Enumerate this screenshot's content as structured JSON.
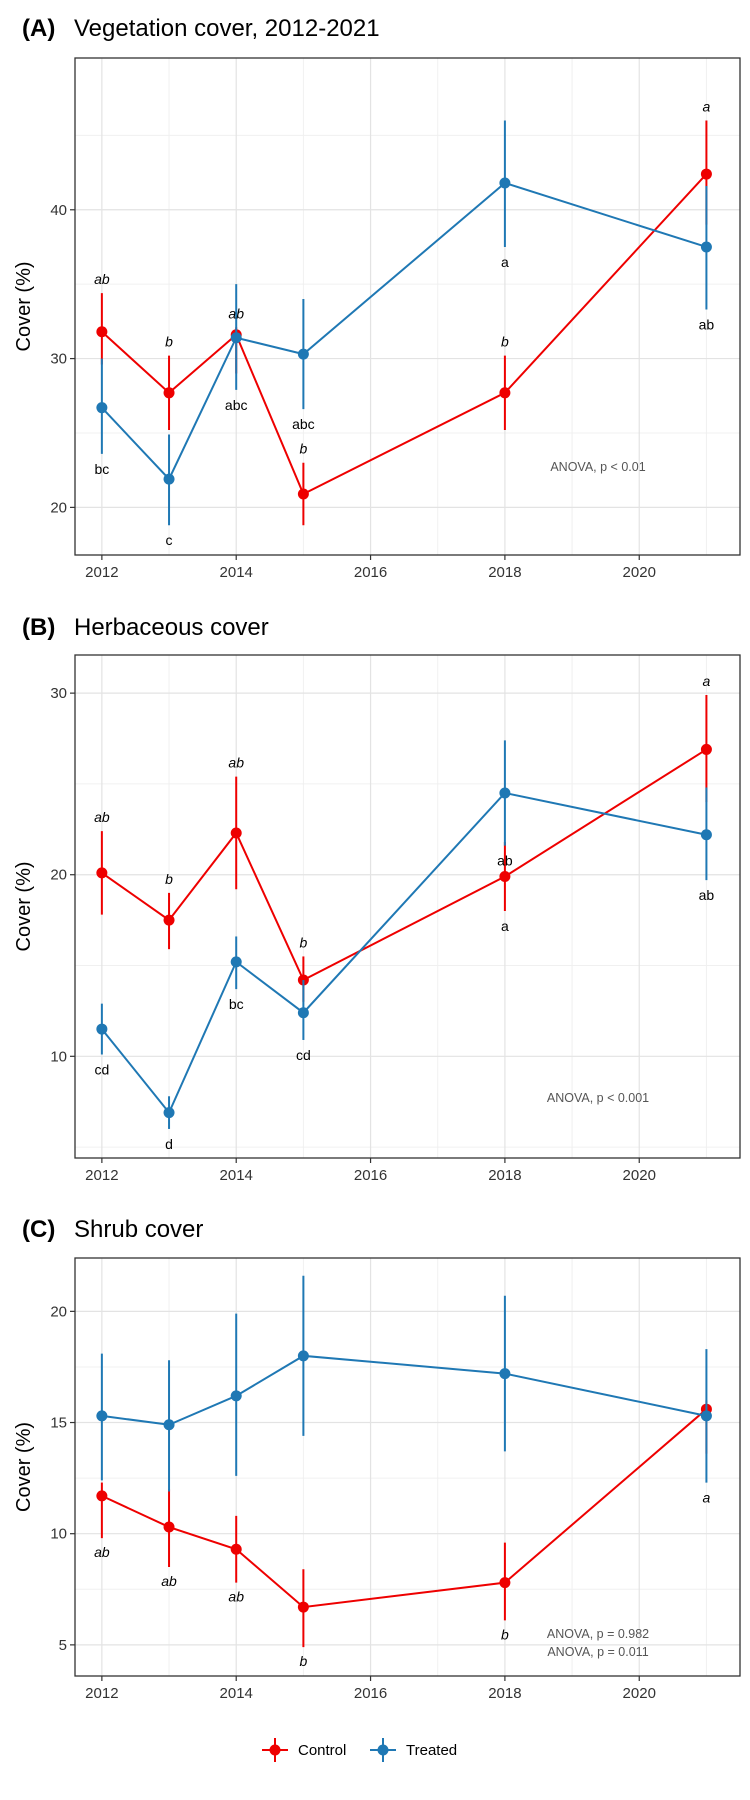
{
  "legend": [
    {
      "name": "Control",
      "color": "#EE0000"
    },
    {
      "name": "Treated",
      "color": "#1F78B4"
    }
  ],
  "chart_data": [
    {
      "type": "line",
      "tag": "(A)",
      "title": "Vegetation cover, 2012-2021",
      "ylabel": "Cover (%)",
      "xlim": [
        2011.6,
        2021.5
      ],
      "ylim": [
        16.8,
        50.2
      ],
      "x_ticks": [
        2012,
        2014,
        2016,
        2018,
        2020
      ],
      "y_ticks": [
        20,
        30,
        40
      ],
      "annotation": [
        "ANOVA, p < 0.01"
      ],
      "series": [
        {
          "name": "Control",
          "color": "#EE0000",
          "points": [
            {
              "x": 2012,
              "y": 31.8,
              "lo": 29.6,
              "hi": 34.4,
              "label": "ab"
            },
            {
              "x": 2013,
              "y": 27.7,
              "lo": 25.2,
              "hi": 30.2,
              "label": "b"
            },
            {
              "x": 2014,
              "y": 31.6,
              "lo": 29.0,
              "hi": 32.1,
              "label": "ab"
            },
            {
              "x": 2015,
              "y": 20.9,
              "lo": 18.8,
              "hi": 23.0,
              "label": "b"
            },
            {
              "x": 2018,
              "y": 27.7,
              "lo": 25.2,
              "hi": 30.2,
              "label": "b"
            },
            {
              "x": 2021,
              "y": 42.4,
              "lo": 39.0,
              "hi": 46.0,
              "label": "a"
            }
          ]
        },
        {
          "name": "Treated",
          "color": "#1F78B4",
          "points": [
            {
              "x": 2012,
              "y": 26.7,
              "lo": 23.6,
              "hi": 30.0,
              "label": "bc"
            },
            {
              "x": 2013,
              "y": 21.9,
              "lo": 18.8,
              "hi": 24.9,
              "label": "c"
            },
            {
              "x": 2014,
              "y": 31.4,
              "lo": 27.9,
              "hi": 35.0,
              "label": "abc"
            },
            {
              "x": 2015,
              "y": 30.3,
              "lo": 26.6,
              "hi": 34.0,
              "label": "abc"
            },
            {
              "x": 2018,
              "y": 41.8,
              "lo": 37.5,
              "hi": 46.0,
              "label": "a"
            },
            {
              "x": 2021,
              "y": 37.5,
              "lo": 33.3,
              "hi": 41.6,
              "label": "ab"
            }
          ]
        }
      ]
    },
    {
      "type": "line",
      "tag": "(B)",
      "title": "Herbaceous cover",
      "ylabel": "Cover (%)",
      "xlim": [
        2011.6,
        2021.5
      ],
      "ylim": [
        4.4,
        32.1
      ],
      "x_ticks": [
        2012,
        2014,
        2016,
        2018,
        2020
      ],
      "y_ticks": [
        10,
        20,
        30
      ],
      "annotation": [
        "ANOVA, p < 0.001"
      ],
      "series": [
        {
          "name": "Control",
          "color": "#EE0000",
          "points": [
            {
              "x": 2012,
              "y": 20.1,
              "lo": 17.8,
              "hi": 22.4,
              "label": "ab"
            },
            {
              "x": 2013,
              "y": 17.5,
              "lo": 15.9,
              "hi": 19.0,
              "label": "b"
            },
            {
              "x": 2014,
              "y": 22.3,
              "lo": 19.2,
              "hi": 25.4,
              "label": "ab"
            },
            {
              "x": 2015,
              "y": 14.2,
              "lo": 13.0,
              "hi": 15.5,
              "label": "b"
            },
            {
              "x": 2018,
              "y": 19.9,
              "lo": 18.0,
              "hi": 21.8,
              "label": ""
            },
            {
              "x": 2021,
              "y": 26.9,
              "lo": 24.0,
              "hi": 29.9,
              "label": "a"
            }
          ]
        },
        {
          "name": "Treated",
          "color": "#1F78B4",
          "points": [
            {
              "x": 2012,
              "y": 11.5,
              "lo": 10.1,
              "hi": 12.9,
              "label": "cd"
            },
            {
              "x": 2013,
              "y": 6.9,
              "lo": 6.0,
              "hi": 7.8,
              "label": "d"
            },
            {
              "x": 2014,
              "y": 15.2,
              "lo": 13.7,
              "hi": 16.6,
              "label": "bc"
            },
            {
              "x": 2015,
              "y": 12.4,
              "lo": 10.9,
              "hi": 14.2,
              "label": "cd"
            },
            {
              "x": 2018,
              "y": 24.5,
              "lo": 21.6,
              "hi": 27.4,
              "label": "ab"
            },
            {
              "x": 2021,
              "y": 22.2,
              "lo": 19.7,
              "hi": 24.8,
              "label": "ab"
            }
          ]
        }
      ],
      "extra_labels": [
        {
          "x": 2018,
          "text": "a",
          "series": "Control"
        }
      ]
    },
    {
      "type": "line",
      "tag": "(C)",
      "title": "Shrub cover",
      "ylabel": "Cover (%)",
      "xlim": [
        2011.6,
        2021.5
      ],
      "ylim": [
        3.6,
        22.4
      ],
      "x_ticks": [
        2012,
        2014,
        2016,
        2018,
        2020
      ],
      "y_ticks": [
        5,
        10,
        15,
        20
      ],
      "annotation": [
        "ANOVA, p = 0.982",
        "ANOVA, p = 0.011"
      ],
      "series": [
        {
          "name": "Control",
          "color": "#EE0000",
          "points": [
            {
              "x": 2012,
              "y": 11.7,
              "lo": 9.8,
              "hi": 12.3,
              "label": "ab"
            },
            {
              "x": 2013,
              "y": 10.3,
              "lo": 8.5,
              "hi": 12.0,
              "label": "ab"
            },
            {
              "x": 2014,
              "y": 9.3,
              "lo": 7.8,
              "hi": 10.8,
              "label": "ab"
            },
            {
              "x": 2015,
              "y": 6.7,
              "lo": 4.9,
              "hi": 8.4,
              "label": "b"
            },
            {
              "x": 2018,
              "y": 7.8,
              "lo": 6.1,
              "hi": 9.6,
              "label": "b"
            },
            {
              "x": 2021,
              "y": 15.6,
              "lo": 13.6,
              "hi": 16.0,
              "label": ""
            }
          ]
        },
        {
          "name": "Treated",
          "color": "#1F78B4",
          "points": [
            {
              "x": 2012,
              "y": 15.3,
              "lo": 12.4,
              "hi": 18.1,
              "label": ""
            },
            {
              "x": 2013,
              "y": 14.9,
              "lo": 11.9,
              "hi": 17.8,
              "label": ""
            },
            {
              "x": 2014,
              "y": 16.2,
              "lo": 12.6,
              "hi": 19.9,
              "label": ""
            },
            {
              "x": 2015,
              "y": 18.0,
              "lo": 14.4,
              "hi": 21.6,
              "label": ""
            },
            {
              "x": 2018,
              "y": 17.2,
              "lo": 13.7,
              "hi": 20.7,
              "label": ""
            },
            {
              "x": 2021,
              "y": 15.3,
              "lo": 12.3,
              "hi": 18.3,
              "label": "a"
            }
          ]
        }
      ]
    }
  ]
}
